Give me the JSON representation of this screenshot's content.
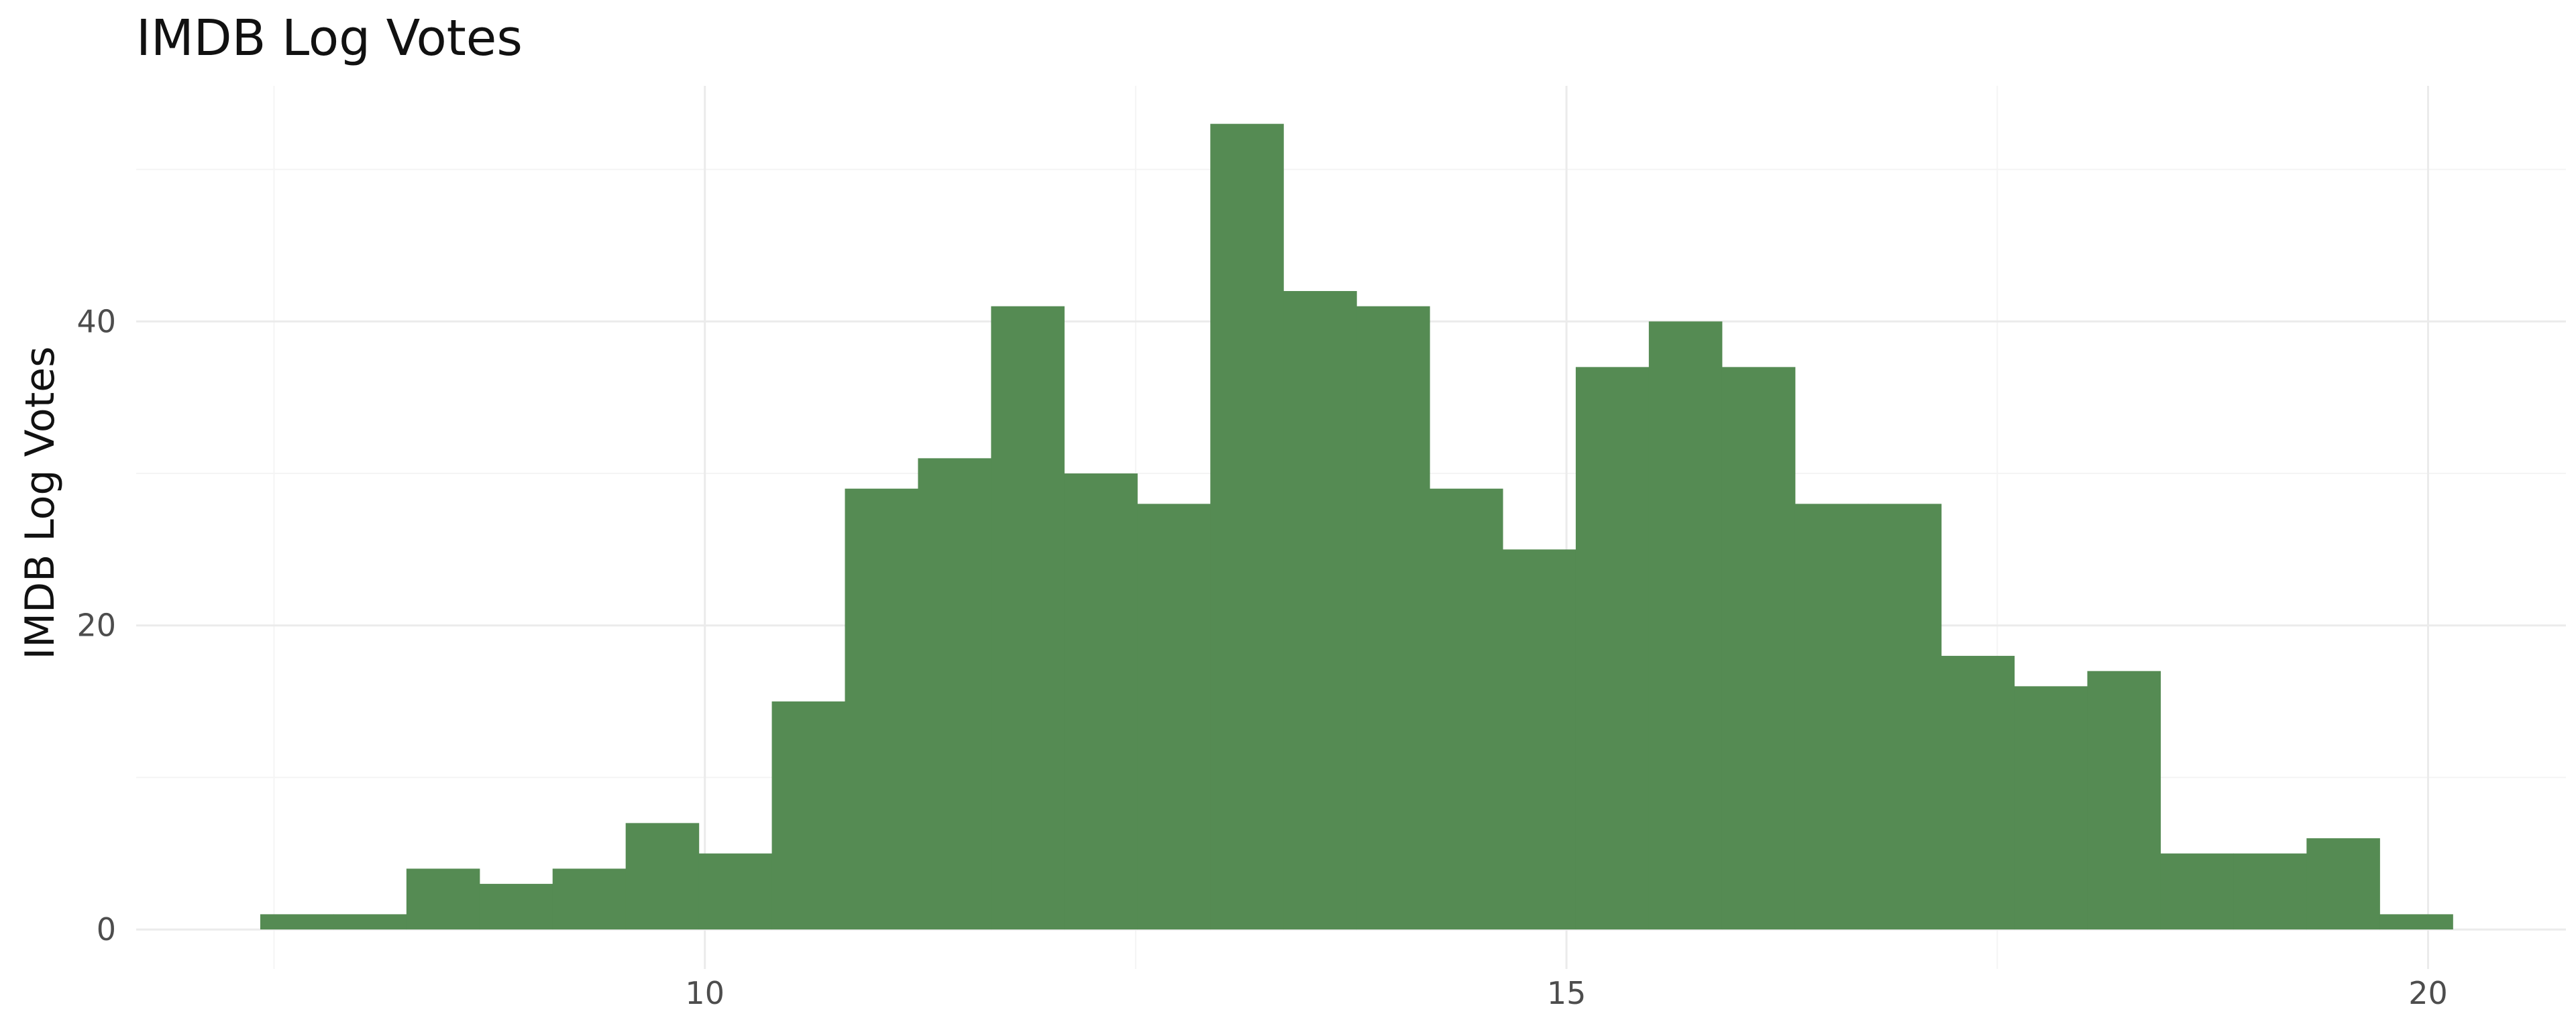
{
  "chart_data": {
    "type": "bar",
    "title": "IMDB Log Votes",
    "xlabel": "",
    "ylabel": "IMDB Log Votes",
    "xlim": [
      6.7,
      20.8
    ],
    "ylim": [
      -2.6,
      55.5
    ],
    "x_ticks": [
      10,
      15,
      20
    ],
    "x_tick_labels": [
      "10",
      "15",
      "20"
    ],
    "y_ticks": [
      0,
      20,
      40
    ],
    "y_tick_labels": [
      "0",
      "20",
      "40"
    ],
    "grid": true,
    "legend": "none",
    "bin_width": 0.4241,
    "bins_start": 7.42,
    "values": [
      1,
      1,
      4,
      3,
      4,
      7,
      5,
      15,
      29,
      31,
      41,
      30,
      28,
      53,
      42,
      41,
      29,
      25,
      37,
      40,
      37,
      28,
      28,
      18,
      16,
      17,
      5,
      5,
      6,
      1
    ],
    "colors": {
      "bar": "#558b53",
      "background": "#ffffff"
    }
  }
}
